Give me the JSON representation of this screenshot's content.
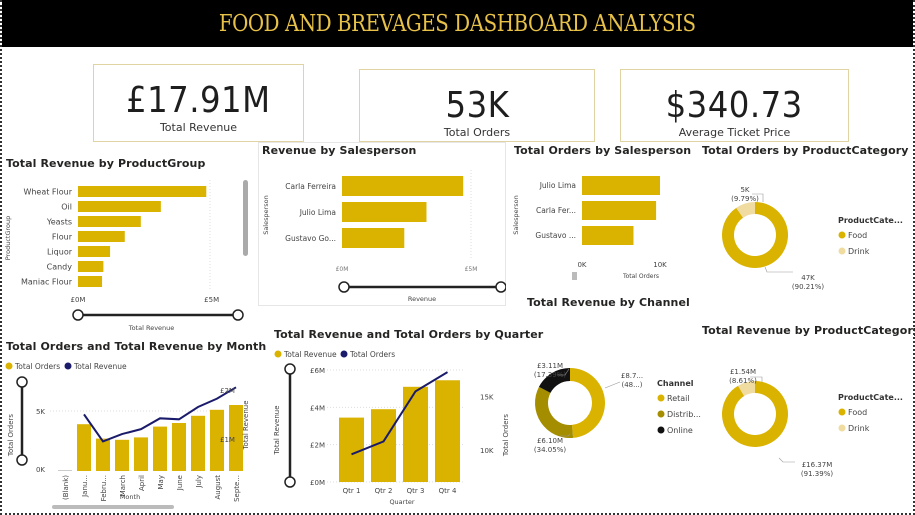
{
  "title": "FOOD AND BREVAGES DASHBOARD ANALYSIS",
  "colors": {
    "gold": "#d9b300",
    "light_gold": "#f0dca0",
    "dark_gold": "#a58d00",
    "black": "#111111",
    "navy": "#1b1b6b",
    "title_gold": "#e7c148"
  },
  "kpis": [
    {
      "value": "£17.91M",
      "label": "Total Revenue"
    },
    {
      "value": "53K",
      "label": "Total Orders"
    },
    {
      "value": "$340.73",
      "label": "Average Ticket Price"
    }
  ],
  "chart_data": [
    {
      "id": "revenue_by_productgroup",
      "type": "bar",
      "orientation": "horizontal",
      "title": "Total Revenue by ProductGroup",
      "xlabel": "Total Revenue",
      "ylabel": "ProductGroup",
      "categories": [
        "Wheat Flour",
        "Oil",
        "Yeasts",
        "Flour",
        "Liquor",
        "Candy",
        "Maniac Flour"
      ],
      "values": [
        4.8,
        3.1,
        2.35,
        1.75,
        1.2,
        0.95,
        0.9
      ],
      "unit": "£M",
      "xlim": [
        0,
        5.5
      ],
      "xticks": [
        "£0M",
        "£5M"
      ],
      "grid": false
    },
    {
      "id": "revenue_by_salesperson",
      "type": "bar",
      "orientation": "horizontal",
      "title": "Revenue by Salesperson",
      "xlabel": "Revenue",
      "ylabel": "Salesperson",
      "categories": [
        "Carla Ferreira",
        "Julio Lima",
        "Gustavo Go..."
      ],
      "values": [
        7.1,
        4.95,
        3.65
      ],
      "unit": "£M",
      "xlim": [
        0,
        7.5
      ],
      "xticks": [
        "£0M",
        "£5M"
      ]
    },
    {
      "id": "orders_by_salesperson",
      "type": "bar",
      "orientation": "horizontal",
      "title": "Total Orders by Salesperson",
      "xlabel": "Total Orders",
      "ylabel": "Salesperson",
      "categories": [
        "Julio Lima",
        "Carla Fer...",
        "Gustavo ..."
      ],
      "values": [
        10000,
        9500,
        6600
      ],
      "xlim": [
        0,
        10500
      ],
      "xticks": [
        "0K",
        "10K"
      ]
    },
    {
      "id": "orders_by_productcategory",
      "type": "pie",
      "donut": true,
      "title": "Total Orders by ProductCategory",
      "legend_title": "ProductCate...",
      "legend_position": "right",
      "categories": [
        "Food",
        "Drink"
      ],
      "values": [
        47,
        5
      ],
      "percents": [
        90.21,
        9.79
      ],
      "labels": [
        "47K",
        "5K"
      ],
      "pct_labels": [
        "(90.21%)",
        "(9.79%)"
      ],
      "unit": "K"
    },
    {
      "id": "orders_revenue_by_month",
      "type": "bar",
      "combo": "bar+line",
      "title": "Total Orders and Total Revenue by Month",
      "xlabel": "Month",
      "ylabel": "Total Orders",
      "y2label": "Total Revenue",
      "legend_position": "top-left",
      "categories": [
        "(Blank)",
        "Janu...",
        "Febru...",
        "March",
        "April",
        "May",
        "June",
        "July",
        "August",
        "Septe..."
      ],
      "series": [
        {
          "name": "Total Orders",
          "type": "bar",
          "values": [
            50,
            3900,
            2700,
            2600,
            2800,
            3700,
            4000,
            4600,
            5100,
            5500
          ]
        },
        {
          "name": "Total Revenue",
          "type": "line",
          "axis": "right",
          "values": [
            null,
            1.5,
            0.95,
            1.1,
            1.2,
            1.42,
            1.4,
            1.65,
            1.82,
            2.05
          ]
        }
      ],
      "ylim": [
        0,
        8000
      ],
      "y2lim": [
        0.35,
        2.3
      ],
      "yticks": [
        "0K",
        "5K"
      ],
      "y2ticks": [
        "£1M",
        "£2M"
      ]
    },
    {
      "id": "revenue_orders_by_quarter",
      "type": "bar",
      "combo": "bar+line",
      "title": "Total Revenue and Total Orders by Quarter",
      "xlabel": "Quarter",
      "ylabel": "Total Revenue",
      "y2label": "Total Orders",
      "legend_position": "top-left",
      "categories": [
        "Qtr 1",
        "Qtr 2",
        "Qtr 3",
        "Qtr 4"
      ],
      "series": [
        {
          "name": "Total Revenue",
          "type": "bar",
          "unit": "£M",
          "values": [
            3.45,
            3.9,
            5.1,
            5.45
          ]
        },
        {
          "name": "Total Orders",
          "type": "line",
          "axis": "right",
          "values": [
            9600,
            10800,
            15500,
            17300
          ]
        }
      ],
      "ylim": [
        0,
        6
      ],
      "y2lim": [
        7000,
        17500
      ],
      "yticks": [
        "£0M",
        "£2M",
        "£4M",
        "£6M"
      ],
      "y2ticks": [
        "10K",
        "15K"
      ]
    },
    {
      "id": "revenue_by_channel",
      "type": "pie",
      "donut": true,
      "title": "Total Revenue by Channel",
      "legend_title": "Channel",
      "legend_position": "right",
      "categories": [
        "Retail",
        "Distrib...",
        "Online"
      ],
      "values": [
        8.7,
        6.1,
        3.11
      ],
      "percents": [
        48.56,
        34.05,
        17.39
      ],
      "labels": [
        "£8.7...",
        "£6.10M",
        "£3.11M"
      ],
      "pct_labels": [
        "(48...)",
        "(34.05%)",
        "(17.39%)"
      ],
      "unit": "£M"
    },
    {
      "id": "revenue_by_productcategory",
      "type": "pie",
      "donut": true,
      "title": "Total Revenue by ProductCategory",
      "legend_title": "ProductCate...",
      "legend_position": "right",
      "categories": [
        "Food",
        "Drink"
      ],
      "values": [
        16.37,
        1.54
      ],
      "percents": [
        91.39,
        8.61
      ],
      "labels": [
        "£16.37M",
        "£1.54M"
      ],
      "pct_labels": [
        "(91.39%)",
        "(8.61%)"
      ],
      "unit": "£M"
    }
  ]
}
